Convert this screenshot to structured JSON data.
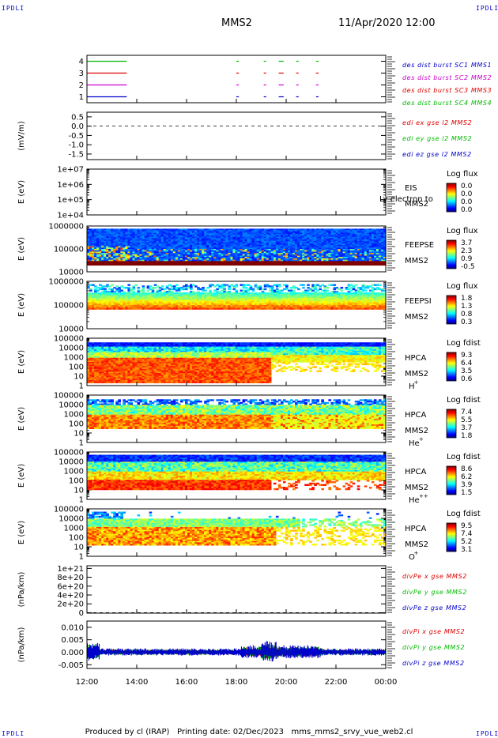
{
  "corner_labels": {
    "top_left": "IPDLI",
    "top_right": "IPDLI",
    "bottom_left": "IPDLI",
    "bottom_right": "IPDLI"
  },
  "header": {
    "spacecraft": "MMS2",
    "datetime": "11/Apr/2020 12:00"
  },
  "footer": {
    "produced_by": "Produced by cl (IRAP)",
    "printing_date": "Printing date: 02/Dec/2023",
    "script_name": "mms_mms2_srvy_vue_web2.cl"
  },
  "chart_data": [
    {
      "type": "line",
      "panel": "burst-coverage",
      "ylabel": "",
      "yticks": [
        "4",
        "3",
        "2",
        "1"
      ],
      "ylim": [
        0.5,
        4.5
      ],
      "legend": [
        {
          "text": "des dist burst SC1 MMS1",
          "color": "#0000cc"
        },
        {
          "text": "des dist burst SC2 MMS2",
          "color": "#cc00cc"
        },
        {
          "text": "des dist burst SC3 MMS3",
          "color": "#dd0000"
        },
        {
          "text": "des dist burst SC4 MMS4",
          "color": "#00bb00"
        }
      ],
      "series": [
        {
          "level": 4,
          "color": "#00bb00",
          "intervals": [
            [
              12.0,
              13.6
            ],
            [
              18.0,
              18.1
            ],
            [
              19.1,
              19.2
            ],
            [
              19.7,
              19.9
            ],
            [
              20.4,
              20.5
            ],
            [
              21.2,
              21.3
            ]
          ]
        },
        {
          "level": 3,
          "color": "#dd0000",
          "intervals": [
            [
              12.0,
              13.6
            ],
            [
              18.0,
              18.1
            ],
            [
              19.1,
              19.2
            ],
            [
              19.7,
              19.9
            ],
            [
              20.4,
              20.5
            ],
            [
              21.2,
              21.3
            ]
          ]
        },
        {
          "level": 2,
          "color": "#cc00cc",
          "intervals": [
            [
              12.0,
              13.6
            ],
            [
              18.0,
              18.1
            ],
            [
              19.1,
              19.2
            ],
            [
              19.7,
              19.9
            ],
            [
              20.4,
              20.5
            ],
            [
              21.2,
              21.3
            ]
          ]
        },
        {
          "level": 1,
          "color": "#0000cc",
          "intervals": [
            [
              12.0,
              13.6
            ],
            [
              18.0,
              18.1
            ],
            [
              19.1,
              19.2
            ],
            [
              19.7,
              19.9
            ],
            [
              20.4,
              20.5
            ],
            [
              21.2,
              21.3
            ]
          ]
        }
      ]
    },
    {
      "type": "line",
      "panel": "edi-e-field",
      "ylabel": "(mV/m)",
      "yticks": [
        "0.5",
        "0.0",
        "-0.5",
        "-1.0",
        "-1.5"
      ],
      "ylim": [
        -1.8,
        0.75
      ],
      "dashed_zero": true,
      "legend": [
        {
          "text": "edi ex gse l2 MMS2",
          "color": "#dd0000"
        },
        {
          "text": "edi ey gse l2 MMS2",
          "color": "#00bb00"
        },
        {
          "text": "edi ez gse l2 MMS2",
          "color": "#0000cc"
        }
      ]
    },
    {
      "type": "heatmap",
      "panel": "eis-electron",
      "ylabel": "E (eV)",
      "yticks": [
        "1e+07",
        "1e+06",
        "1e+05",
        "1e+04"
      ],
      "scale": "log",
      "instrument": "EIS",
      "spacecraft": "MMS2",
      "overlay_text": "Ly electron to",
      "colorbar_title": "Log flux",
      "colorbar_ticks": [
        "0.0",
        "0.0",
        "0.0",
        "0.0"
      ],
      "data": "empty"
    },
    {
      "type": "heatmap",
      "panel": "feeps-electron",
      "ylabel": "E (eV)",
      "yticks": [
        "1000000",
        "100000",
        "10000"
      ],
      "scale": "log",
      "instrument": "FEEPSE",
      "spacecraft": "MMS2",
      "colorbar_title": "Log flux",
      "colorbar_ticks": [
        "3.7",
        "2.3",
        "0.9",
        "-0.5"
      ]
    },
    {
      "type": "heatmap",
      "panel": "feeps-ion",
      "ylabel": "E (eV)",
      "yticks": [
        "1000000",
        "100000",
        "10000"
      ],
      "scale": "log",
      "instrument": "FEEPSI",
      "spacecraft": "MMS2",
      "colorbar_title": "Log flux",
      "colorbar_ticks": [
        "1.8",
        "1.3",
        "0.8",
        "0.3"
      ]
    },
    {
      "type": "heatmap",
      "panel": "hpca-h",
      "ylabel": "E (eV)",
      "yticks": [
        "100000",
        "10000",
        "1000",
        "100",
        "10",
        "1"
      ],
      "scale": "log",
      "instrument": "HPCA",
      "spacecraft": "MMS2",
      "species": "H",
      "species_sup": "+",
      "colorbar_title": "Log fdist",
      "colorbar_ticks": [
        "9.3",
        "6.4",
        "3.5",
        "0.6"
      ]
    },
    {
      "type": "heatmap",
      "panel": "hpca-he",
      "ylabel": "E (eV)",
      "yticks": [
        "100000",
        "10000",
        "1000",
        "100",
        "10",
        "1"
      ],
      "scale": "log",
      "instrument": "HPCA",
      "spacecraft": "MMS2",
      "species": "He",
      "species_sup": "+",
      "colorbar_title": "Log fdist",
      "colorbar_ticks": [
        "7.4",
        "5.5",
        "3.7",
        "1.8"
      ]
    },
    {
      "type": "heatmap",
      "panel": "hpca-he2",
      "ylabel": "E (eV)",
      "yticks": [
        "100000",
        "10000",
        "1000",
        "100",
        "10",
        "1"
      ],
      "scale": "log",
      "instrument": "HPCA",
      "spacecraft": "MMS2",
      "species": "He",
      "species_sup": "++",
      "colorbar_title": "Log fdist",
      "colorbar_ticks": [
        "8.6",
        "6.2",
        "3.9",
        "1.5"
      ]
    },
    {
      "type": "heatmap",
      "panel": "hpca-o",
      "ylabel": "E (eV)",
      "yticks": [
        "100000",
        "10000",
        "1000",
        "100",
        "10",
        "1"
      ],
      "scale": "log",
      "instrument": "HPCA",
      "spacecraft": "MMS2",
      "species": "O",
      "species_sup": "+",
      "colorbar_title": "Log fdist",
      "colorbar_ticks": [
        "9.5",
        "7.4",
        "5.2",
        "3.1"
      ]
    },
    {
      "type": "line",
      "panel": "divpe",
      "ylabel": "(nPa/km)",
      "yticks": [
        "1e+21",
        "8e+20",
        "6e+20",
        "4e+20",
        "2e+20",
        "0"
      ],
      "ylim": [
        -1e+19,
        1.06e+21
      ],
      "dashed_zero": true,
      "legend": [
        {
          "text": "divPe x gse MMS2",
          "color": "#dd0000"
        },
        {
          "text": "divPe y gse MMS2",
          "color": "#00bb00"
        },
        {
          "text": "divPe z gse MMS2",
          "color": "#0000cc"
        }
      ]
    },
    {
      "type": "line",
      "panel": "divpi",
      "ylabel": "(nPa/km)",
      "yticks": [
        "0.010",
        "0.005",
        "0.000",
        "-0.005"
      ],
      "ylim": [
        -0.0065,
        0.0125
      ],
      "legend": [
        {
          "text": "divPi x gse MMS2",
          "color": "#dd0000"
        },
        {
          "text": "divPi y gse MMS2",
          "color": "#00bb00"
        },
        {
          "text": "divPi z gse MMS2",
          "color": "#0000cc"
        }
      ]
    }
  ],
  "time_axis": {
    "range_hours": [
      12,
      24
    ],
    "ticks": [
      "12:00",
      "14:00",
      "16:00",
      "18:00",
      "20:00",
      "22:00",
      "00:00"
    ]
  }
}
